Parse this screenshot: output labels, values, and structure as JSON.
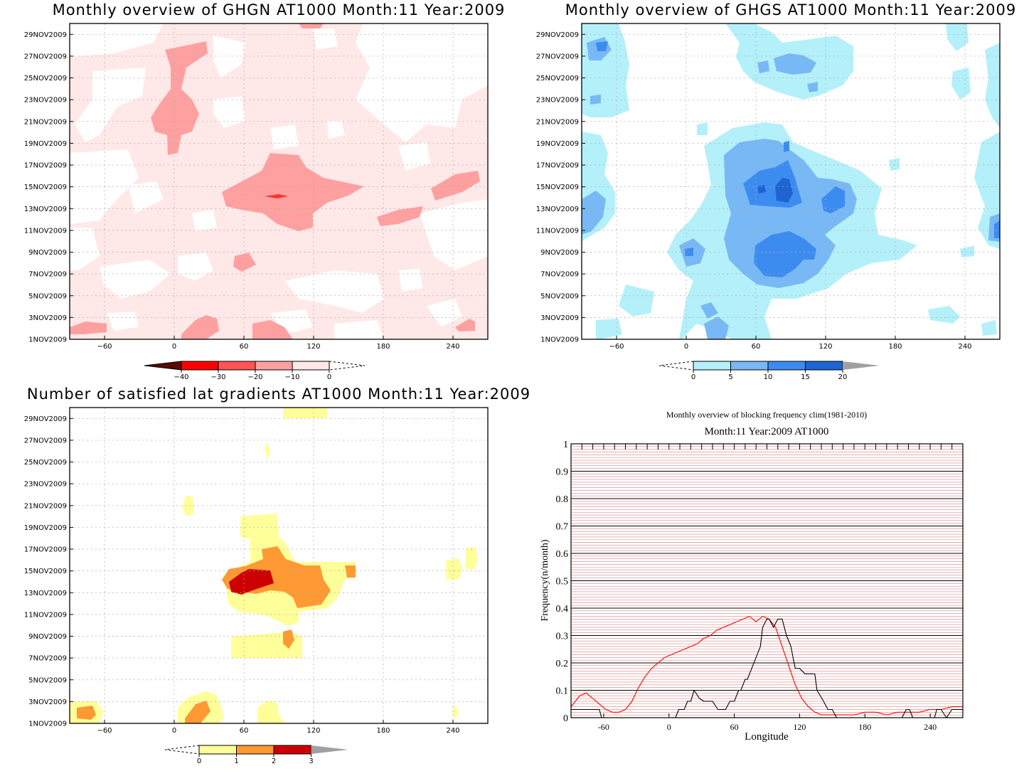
{
  "panels": {
    "ghgn": {
      "title": "Monthly overview of GHGN AT1000 Month:11 Year:2009"
    },
    "ghgs": {
      "title": "Monthly overview of GHGS AT1000 Month:11 Year:2009"
    },
    "grad": {
      "title": "Number of satisfied lat gradients AT1000 Month:11 Year:2009"
    },
    "freq": {
      "title": "Monthly overview of blocking frequency clim(1981-2010)",
      "subtitle": "Month:11 Year:2009  AT1000"
    }
  },
  "chart_data": [
    {
      "type": "heatmap",
      "title": "Monthly overview of GHGN AT1000 Month:11 Year:2009",
      "x_ticks": [
        -60,
        0,
        60,
        120,
        180,
        240
      ],
      "x_range": [
        -90,
        270
      ],
      "y_ticks": [
        "1NOV2009",
        "3NOV2009",
        "5NOV2009",
        "7NOV2009",
        "9NOV2009",
        "11NOV2009",
        "13NOV2009",
        "15NOV2009",
        "17NOV2009",
        "19NOV2009",
        "21NOV2009",
        "23NOV2009",
        "25NOV2009",
        "27NOV2009",
        "29NOV2009"
      ],
      "colorbar": {
        "labels": [
          "-40",
          "-30",
          "-20",
          "-10",
          "0"
        ],
        "colors": [
          "#5a0a00",
          "#ff0000",
          "#ff5555",
          "#ffa0a0",
          "#ffe8e8"
        ]
      },
      "grid": true
    },
    {
      "type": "heatmap",
      "title": "Monthly overview of GHGS AT1000 Month:11 Year:2009",
      "x_ticks": [
        -60,
        0,
        60,
        120,
        180,
        240
      ],
      "x_range": [
        -90,
        270
      ],
      "y_ticks": [
        "1NOV2009",
        "3NOV2009",
        "5NOV2009",
        "7NOV2009",
        "9NOV2009",
        "11NOV2009",
        "13NOV2009",
        "15NOV2009",
        "17NOV2009",
        "19NOV2009",
        "21NOV2009",
        "23NOV2009",
        "25NOV2009",
        "27NOV2009",
        "29NOV2009"
      ],
      "colorbar": {
        "labels": [
          "0",
          "5",
          "10",
          "15",
          "20"
        ],
        "colors": [
          "#b4f0fa",
          "#78b8f5",
          "#3c8cf0",
          "#1e64d2",
          "#a0a0a0"
        ]
      },
      "grid": true
    },
    {
      "type": "heatmap",
      "title": "Number of satisfied lat gradients AT1000 Month:11 Year:2009",
      "x_ticks": [
        -60,
        0,
        60,
        120,
        180,
        240
      ],
      "x_range": [
        -90,
        270
      ],
      "y_ticks": [
        "1NOV2009",
        "3NOV2009",
        "5NOV2009",
        "7NOV2009",
        "9NOV2009",
        "11NOV2009",
        "13NOV2009",
        "15NOV2009",
        "17NOV2009",
        "19NOV2009",
        "21NOV2009",
        "23NOV2009",
        "25NOV2009",
        "27NOV2009",
        "29NOV2009"
      ],
      "colorbar": {
        "labels": [
          "0",
          "1",
          "2",
          "3"
        ],
        "colors": [
          "#ffff99",
          "#ff9933",
          "#cc0000",
          "#a0a0a0"
        ]
      },
      "grid": true
    },
    {
      "type": "line",
      "title": "Monthly overview of blocking frequency clim(1981-2010)",
      "subtitle": "Month:11 Year:2009  AT1000",
      "xlabel": "Longitude",
      "ylabel": "Frequency(n/month)",
      "xlim": [
        -90,
        270
      ],
      "ylim": [
        0,
        1
      ],
      "x_ticks": [
        -60,
        0,
        60,
        120,
        180,
        240
      ],
      "y_ticks": [
        "0",
        "0.1",
        "0.2",
        "0.3",
        "0.4",
        "0.5",
        "0.6",
        "0.7",
        "0.8",
        "0.9",
        "1"
      ],
      "series": [
        {
          "color": "#ff0000",
          "x": [
            -90,
            -82,
            -76,
            -70,
            -64,
            -58,
            -52,
            -46,
            -40,
            -34,
            -28,
            -22,
            -16,
            -10,
            -4,
            2,
            8,
            14,
            20,
            26,
            32,
            38,
            44,
            50,
            56,
            62,
            68,
            74,
            80,
            86,
            92,
            98,
            104,
            110,
            116,
            122,
            128,
            134,
            140,
            146,
            152,
            160,
            170,
            180,
            190,
            200,
            210,
            220,
            230,
            240,
            250,
            260,
            270
          ],
          "y": [
            0.04,
            0.08,
            0.09,
            0.07,
            0.05,
            0.03,
            0.02,
            0.02,
            0.03,
            0.06,
            0.11,
            0.15,
            0.18,
            0.2,
            0.22,
            0.23,
            0.24,
            0.25,
            0.26,
            0.27,
            0.29,
            0.3,
            0.32,
            0.33,
            0.34,
            0.35,
            0.36,
            0.37,
            0.35,
            0.37,
            0.36,
            0.33,
            0.26,
            0.19,
            0.12,
            0.07,
            0.04,
            0.02,
            0.01,
            0.01,
            0.01,
            0.01,
            0.01,
            0.02,
            0.02,
            0.01,
            0.02,
            0.02,
            0.02,
            0.03,
            0.03,
            0.04,
            0.04
          ]
        },
        {
          "color": "#000000",
          "x": [
            -90,
            -87,
            -64,
            -62,
            -56,
            -53,
            6,
            9,
            14,
            17,
            20,
            23,
            28,
            32,
            40,
            45,
            48,
            52,
            56,
            60,
            64,
            66,
            70,
            72,
            76,
            80,
            84,
            86,
            90,
            92,
            96,
            100,
            104,
            108,
            112,
            114,
            116,
            118,
            120,
            125,
            134,
            136,
            142,
            146,
            150,
            154,
            180,
            214,
            218,
            221,
            224,
            230,
            244,
            246,
            250,
            255,
            260,
            265,
            270
          ],
          "y": [
            0.03,
            0.03,
            0.03,
            0,
            0,
            0,
            0,
            0.03,
            0.03,
            0.06,
            0.06,
            0.1,
            0.07,
            0.06,
            0.06,
            0.03,
            0.03,
            0.03,
            0.06,
            0.06,
            0.1,
            0.1,
            0.14,
            0.14,
            0.18,
            0.22,
            0.26,
            0.33,
            0.36,
            0.36,
            0.33,
            0.36,
            0.36,
            0.3,
            0.26,
            0.22,
            0.18,
            0.18,
            0.18,
            0.16,
            0.16,
            0.1,
            0.06,
            0.03,
            0.03,
            0,
            0,
            0,
            0.03,
            0.03,
            0,
            0,
            0,
            0.03,
            0.03,
            0,
            0.03,
            0.03,
            0.03
          ]
        }
      ],
      "grid": true
    }
  ]
}
